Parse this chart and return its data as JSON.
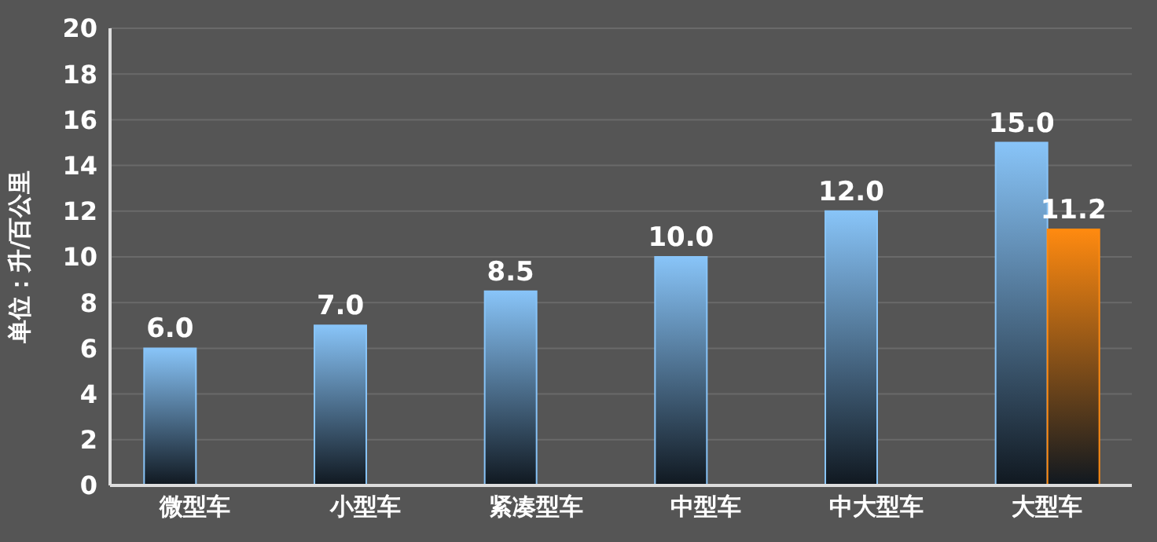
{
  "chart_data": {
    "type": "bar",
    "ylabel": "单位：升/百公里",
    "categories": [
      "微型车",
      "小型车",
      "紧凑型车",
      "中型车",
      "中大型车",
      "大型车"
    ],
    "series": [
      {
        "color": "#88c4f8",
        "values": [
          6,
          7,
          8.5,
          10,
          12,
          15
        ],
        "value_labels": [
          "6.0",
          "7.0",
          "8.5",
          "10.0",
          "12.0",
          "15.0"
        ]
      },
      {
        "color": "#ff8a10",
        "values": [
          null,
          null,
          null,
          null,
          null,
          11.2
        ],
        "value_labels": [
          null,
          null,
          null,
          null,
          null,
          "11.2"
        ]
      }
    ],
    "ylim": [
      0,
      20
    ],
    "yticks": [
      0,
      2,
      4,
      6,
      8,
      10,
      12,
      14,
      16,
      18,
      20
    ],
    "grid": "y"
  }
}
